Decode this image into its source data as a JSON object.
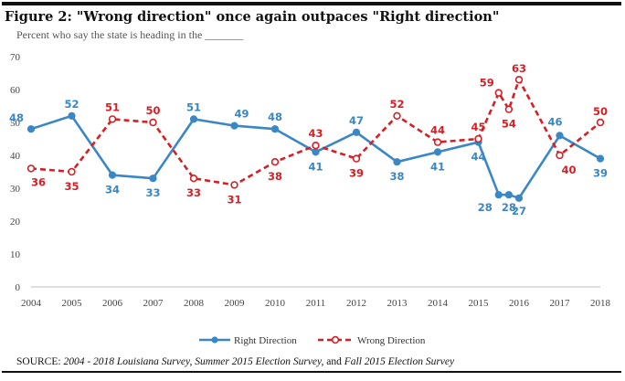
{
  "title": "Figure 2:  \"Wrong direction\" once again outpaces \"Right direction\"",
  "subtitle": "Percent who say the state is heading in the _______",
  "source": {
    "prefix": "SOURCE: ",
    "italic_a": "2004 - 2018 Louisiana Survey, Summer 2015 Election Survey,",
    "middle": " and ",
    "italic_b": "Fall 2015 Election Survey"
  },
  "colors": {
    "right": "#3a87c6",
    "wrong": "#d81e24",
    "axis": "#bfbfbf"
  },
  "chart_data": {
    "type": "line",
    "ylim": [
      0,
      70
    ],
    "yticks": [
      0,
      10,
      20,
      30,
      40,
      50,
      60,
      70
    ],
    "x_tick_labels": [
      "2004",
      "2005",
      "2006",
      "2007",
      "2008",
      "2009",
      "2010",
      "2011",
      "2012",
      "2013",
      "2014",
      "2015",
      "2016",
      "2017",
      "2018"
    ],
    "x": [
      2004,
      2005,
      2006,
      2007,
      2008,
      2009,
      2010,
      2011,
      2012,
      2013,
      2014,
      2015,
      2015.5,
      2015.75,
      2016,
      2017,
      2018
    ],
    "grid": false,
    "legend_position": "bottom-center",
    "series": [
      {
        "name": "Right Direction",
        "key": "right",
        "style": "solid",
        "values": [
          48,
          52,
          34,
          33,
          51,
          49,
          48,
          41,
          47,
          38,
          41,
          44,
          28,
          28,
          27,
          46,
          39
        ]
      },
      {
        "name": "Wrong Direction",
        "key": "wrong",
        "style": "dashed",
        "values": [
          36,
          35,
          51,
          50,
          33,
          31,
          38,
          43,
          39,
          52,
          44,
          45,
          59,
          54,
          63,
          40,
          50
        ]
      }
    ]
  }
}
